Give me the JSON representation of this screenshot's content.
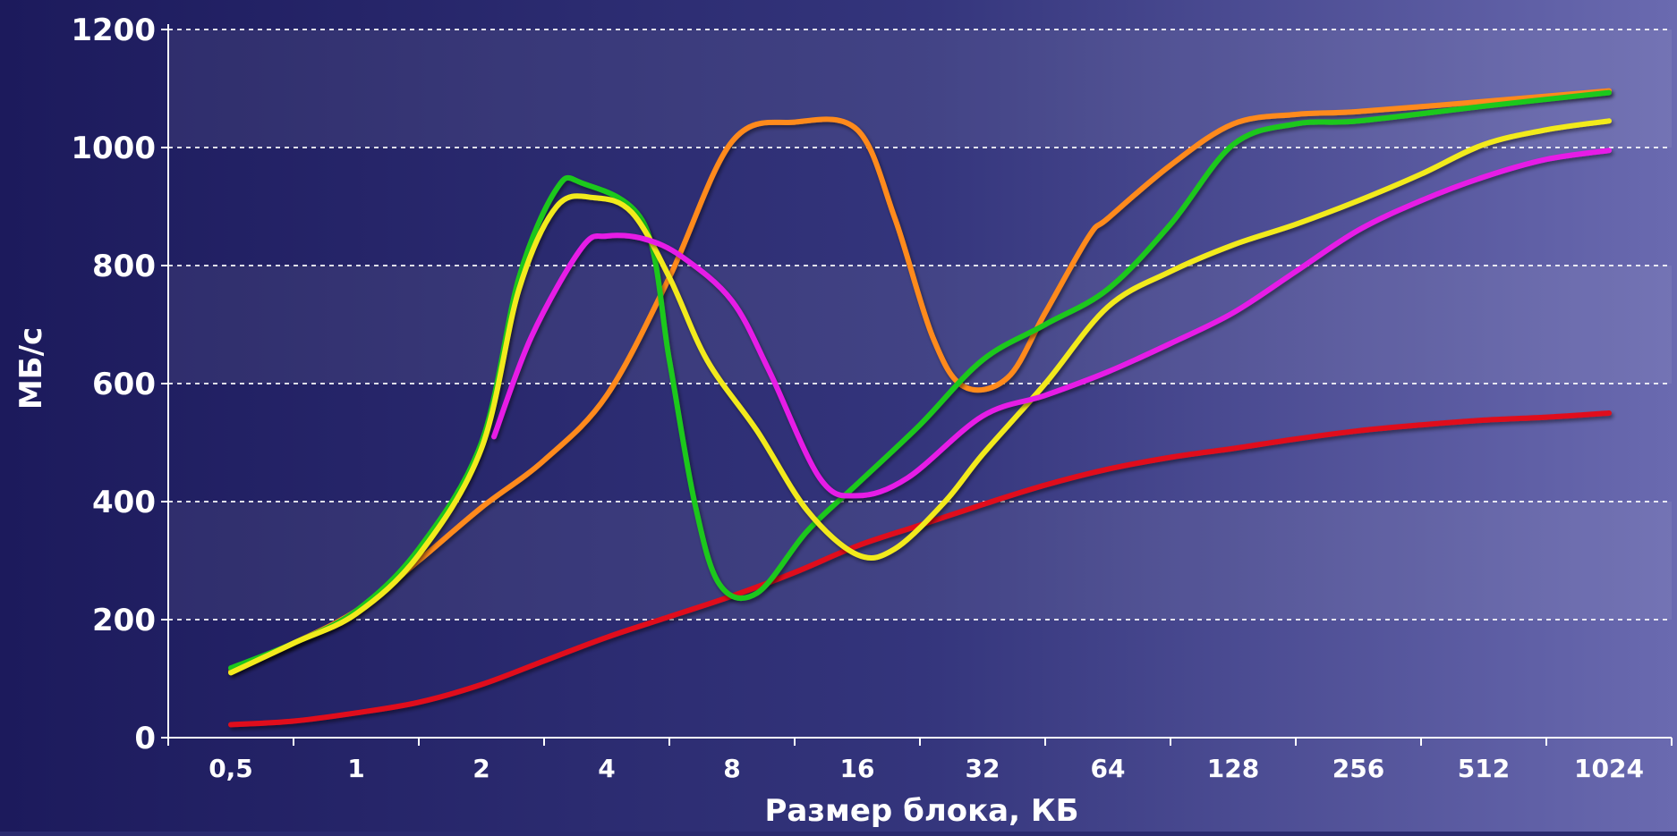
{
  "chart_data": {
    "type": "line",
    "title": "",
    "xlabel": "Размер блока, КБ",
    "ylabel": "МБ/с",
    "categories": [
      "0,5",
      "1",
      "2",
      "4",
      "8",
      "16",
      "32",
      "64",
      "128",
      "256",
      "512",
      "1024"
    ],
    "yticks": [
      "0",
      "200",
      "400",
      "600",
      "800",
      "1000",
      "1200"
    ],
    "ylim": [
      0,
      1200
    ],
    "grid": true,
    "legend": "none",
    "series": [
      {
        "color": "#e0101a",
        "points": [
          [
            0,
            22
          ],
          [
            0.5,
            28
          ],
          [
            1,
            42
          ],
          [
            1.5,
            60
          ],
          [
            2,
            90
          ],
          [
            2.5,
            130
          ],
          [
            3,
            170
          ],
          [
            3.5,
            205
          ],
          [
            4,
            240
          ],
          [
            4.5,
            280
          ],
          [
            5,
            325
          ],
          [
            5.5,
            360
          ],
          [
            6,
            395
          ],
          [
            6.5,
            428
          ],
          [
            7,
            455
          ],
          [
            7.5,
            475
          ],
          [
            8,
            490
          ],
          [
            8.5,
            506
          ],
          [
            9,
            520
          ],
          [
            9.5,
            530
          ],
          [
            10,
            538
          ],
          [
            10.5,
            543
          ],
          [
            11,
            550
          ]
        ]
      },
      {
        "color": "#ff8a1a",
        "points": [
          [
            0,
            112
          ],
          [
            0.5,
            160
          ],
          [
            1,
            215
          ],
          [
            1.5,
            300
          ],
          [
            2,
            390
          ],
          [
            2.5,
            470
          ],
          [
            3,
            580
          ],
          [
            3.5,
            780
          ],
          [
            4,
            1010
          ],
          [
            4.5,
            1043
          ],
          [
            5,
            1030
          ],
          [
            5.3,
            880
          ],
          [
            5.6,
            680
          ],
          [
            5.85,
            595
          ],
          [
            6.2,
            610
          ],
          [
            6.5,
            720
          ],
          [
            6.85,
            850
          ],
          [
            7,
            880
          ],
          [
            7.5,
            970
          ],
          [
            8,
            1040
          ],
          [
            8.5,
            1056
          ],
          [
            9,
            1061
          ],
          [
            10,
            1078
          ],
          [
            11,
            1096
          ]
        ]
      },
      {
        "color": "#1ec81e",
        "points": [
          [
            0,
            118
          ],
          [
            0.5,
            160
          ],
          [
            1,
            215
          ],
          [
            1.5,
            320
          ],
          [
            2,
            500
          ],
          [
            2.3,
            780
          ],
          [
            2.6,
            930
          ],
          [
            2.8,
            940
          ],
          [
            3.3,
            870
          ],
          [
            3.5,
            640
          ],
          [
            3.7,
            400
          ],
          [
            3.9,
            260
          ],
          [
            4.2,
            245
          ],
          [
            4.6,
            350
          ],
          [
            5,
            430
          ],
          [
            5.5,
            530
          ],
          [
            6,
            640
          ],
          [
            6.5,
            700
          ],
          [
            7,
            760
          ],
          [
            7.5,
            870
          ],
          [
            8,
            1005
          ],
          [
            8.5,
            1040
          ],
          [
            9,
            1045
          ],
          [
            10,
            1070
          ],
          [
            11,
            1093
          ]
        ]
      },
      {
        "color": "#f2ea1e",
        "points": [
          [
            0,
            110
          ],
          [
            0.5,
            160
          ],
          [
            1,
            210
          ],
          [
            1.5,
            310
          ],
          [
            2,
            490
          ],
          [
            2.3,
            760
          ],
          [
            2.6,
            900
          ],
          [
            2.9,
            915
          ],
          [
            3.2,
            890
          ],
          [
            3.5,
            780
          ],
          [
            3.8,
            640
          ],
          [
            4.2,
            520
          ],
          [
            4.6,
            385
          ],
          [
            5,
            310
          ],
          [
            5.3,
            320
          ],
          [
            5.7,
            400
          ],
          [
            6,
            480
          ],
          [
            6.5,
            600
          ],
          [
            7,
            730
          ],
          [
            7.5,
            790
          ],
          [
            8,
            835
          ],
          [
            8.5,
            870
          ],
          [
            9,
            910
          ],
          [
            9.5,
            955
          ],
          [
            10,
            1005
          ],
          [
            10.5,
            1030
          ],
          [
            11,
            1045
          ]
        ]
      },
      {
        "color": "#e61ee6",
        "points": [
          [
            2.1,
            510
          ],
          [
            2.4,
            680
          ],
          [
            2.8,
            830
          ],
          [
            3,
            850
          ],
          [
            3.3,
            845
          ],
          [
            3.6,
            815
          ],
          [
            4,
            740
          ],
          [
            4.3,
            620
          ],
          [
            4.7,
            440
          ],
          [
            5,
            410
          ],
          [
            5.4,
            440
          ],
          [
            6,
            545
          ],
          [
            6.5,
            580
          ],
          [
            7,
            620
          ],
          [
            7.5,
            668
          ],
          [
            8,
            720
          ],
          [
            8.5,
            790
          ],
          [
            9,
            860
          ],
          [
            9.5,
            910
          ],
          [
            10,
            950
          ],
          [
            10.5,
            980
          ],
          [
            11,
            995
          ]
        ]
      }
    ]
  }
}
